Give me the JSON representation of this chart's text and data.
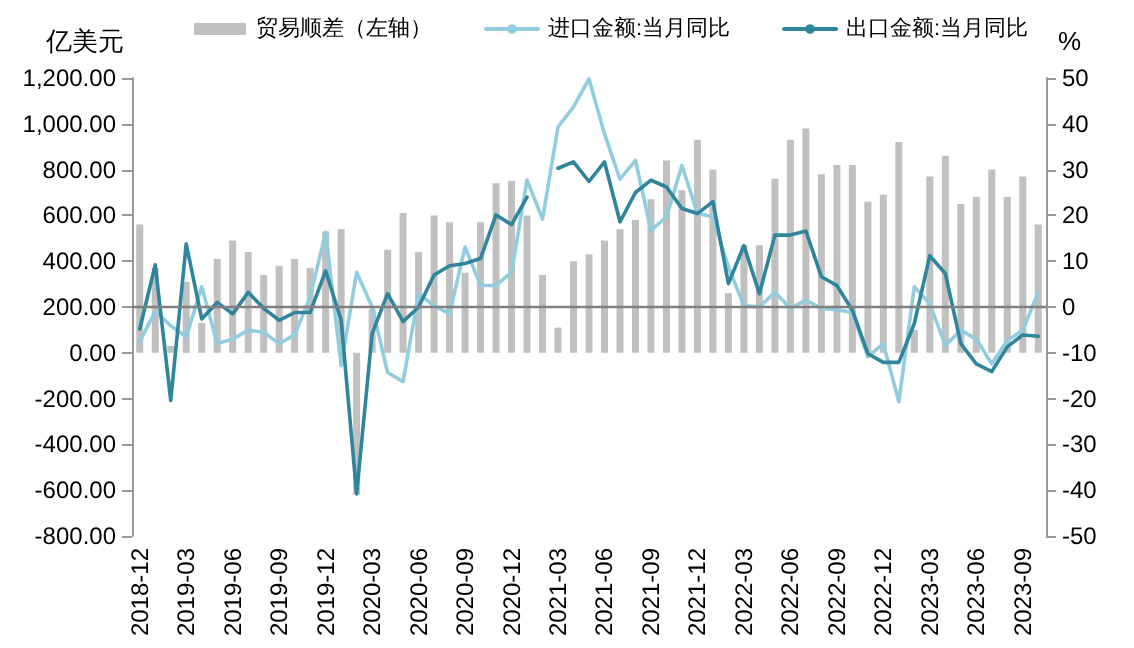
{
  "chart_data": {
    "type": "bar",
    "ylabel": "亿美元",
    "y2label": "%",
    "legend": "top",
    "grid": false,
    "marker": "none",
    "line_style": "solid",
    "categories": [
      "2018-12",
      null,
      null,
      "2019-03",
      null,
      null,
      "2019-06",
      null,
      null,
      "2019-09",
      null,
      null,
      "2019-12",
      null,
      null,
      "2020-03",
      null,
      null,
      "2020-06",
      null,
      null,
      "2020-09",
      null,
      null,
      "2020-12",
      null,
      null,
      "2021-03",
      null,
      null,
      "2021-06",
      null,
      null,
      "2021-09",
      null,
      null,
      "2021-12",
      null,
      null,
      "2022-03",
      null,
      null,
      "2022-06",
      null,
      null,
      "2022-09",
      null,
      null,
      "2022-12",
      null,
      null,
      "2023-03",
      null,
      null,
      "2023-06",
      null,
      null,
      "2023-09",
      null
    ],
    "ylim": [
      -800,
      1200
    ],
    "yticks": [
      {
        "value": -800,
        "label": "-800.00"
      },
      {
        "value": -600,
        "label": "-600.00"
      },
      {
        "value": -400,
        "label": "-400.00"
      },
      {
        "value": -200,
        "label": "-200.00"
      },
      {
        "value": 0,
        "label": "0.00"
      },
      {
        "value": 200,
        "label": "200.00"
      },
      {
        "value": 400,
        "label": "400.00"
      },
      {
        "value": 600,
        "label": "600.00"
      },
      {
        "value": 800,
        "label": "800.00"
      },
      {
        "value": 1000,
        "label": "1,000.00"
      },
      {
        "value": 1200,
        "label": "1,200.00"
      }
    ],
    "ref_lines": [
      {
        "axis": "y2",
        "value": 0,
        "color": "#808080"
      }
    ],
    "y2lim": [
      -50,
      50
    ],
    "y2ticks": [
      -50,
      -40,
      -30,
      -20,
      -10,
      0,
      10,
      20,
      30,
      40,
      50
    ],
    "series": [
      {
        "name": "贸易顺差（左轴）",
        "color": "#c0c0c0",
        "values": [
          560,
          370,
          30,
          310,
          130,
          410,
          490,
          440,
          340,
          380,
          410,
          370,
          530,
          540,
          -620,
          190,
          450,
          610,
          440,
          600,
          570,
          350,
          570,
          740,
          750,
          600,
          340,
          110,
          400,
          430,
          490,
          540,
          580,
          670,
          840,
          710,
          930,
          800,
          260,
          470,
          470,
          760,
          930,
          980,
          780,
          820,
          820,
          660,
          690,
          920,
          100,
          770,
          860,
          650,
          680,
          800,
          680,
          770,
          560
        ]
      },
      {
        "name": "进口金额:当月同比",
        "type": "line",
        "axis": "y2",
        "color": "#92cddf",
        "values": [
          -7.6,
          -0.9,
          -4.1,
          -6.5,
          4.4,
          -8.0,
          -7.0,
          -5.1,
          -5.5,
          -8.0,
          -6.1,
          2.2,
          16.3,
          -12.8,
          7.6,
          0.0,
          -14.3,
          -16.3,
          2.9,
          0.3,
          -1.5,
          13.1,
          4.7,
          4.7,
          7.6,
          27.7,
          19.2,
          39.3,
          43.7,
          49.8,
          37.8,
          27.9,
          32.0,
          16.7,
          19.7,
          30.9,
          20.4,
          19.7,
          8.7,
          0.3,
          0.0,
          3.2,
          -0.3,
          1.5,
          -0.3,
          -0.6,
          -1.2,
          -10.9,
          -8.0,
          -20.7,
          4.4,
          0.7,
          -8.4,
          -5.1,
          -7.0,
          -12.4,
          -7.3,
          -5.1,
          3.2
        ]
      },
      {
        "name": "出口金额:当月同比",
        "type": "line",
        "axis": "y2",
        "color": "#2e859c",
        "values": [
          -4.8,
          9.2,
          -20.4,
          13.8,
          -2.6,
          1.0,
          -1.5,
          3.2,
          -0.3,
          -2.9,
          -1.2,
          -1.2,
          7.9,
          -2.9,
          -40.8,
          -5.8,
          2.9,
          -3.2,
          0.0,
          7.0,
          9.0,
          9.5,
          10.6,
          20.1,
          18.0,
          24.0,
          null,
          30.3,
          31.7,
          27.4,
          31.7,
          18.6,
          25.0,
          27.7,
          26.2,
          21.5,
          20.4,
          23.0,
          5.1,
          13.4,
          2.9,
          15.7,
          15.7,
          16.6,
          6.6,
          4.7,
          -0.7,
          -10.2,
          -12.1,
          -12.1,
          -3.6,
          11.2,
          7.3,
          -8.0,
          -12.4,
          -14.1,
          -8.7,
          -6.1,
          -6.4
        ]
      }
    ]
  }
}
